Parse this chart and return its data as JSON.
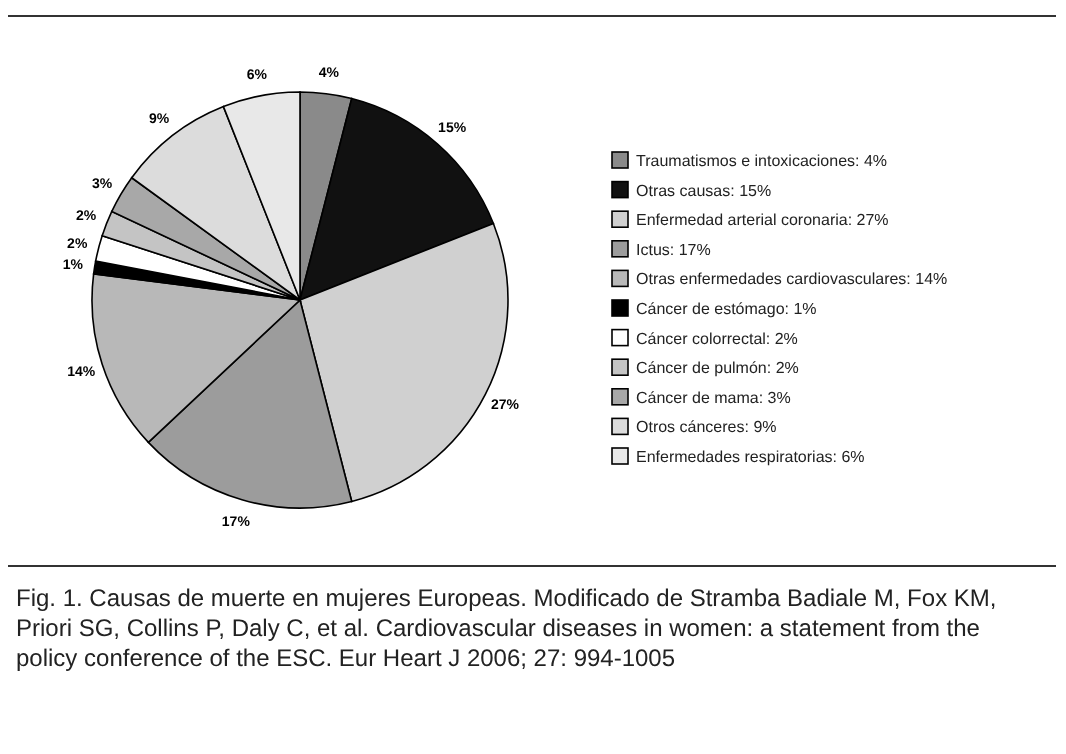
{
  "chart_data": {
    "type": "pie",
    "categories": [
      "Traumatismos e intoxicaciones: 4%",
      "Otras causas: 15%",
      "Enfermedad arterial coronaria: 27%",
      "Ictus: 17%",
      "Otras enfermedades cardiovasculares: 14%",
      "Cáncer de estómago: 1%",
      "Cáncer colorrectal: 2%",
      "Cáncer de pulmón: 2%",
      "Cáncer de mama: 3%",
      "Otros cánceres: 9%",
      "Enfermedades respiratorias: 6%"
    ],
    "values": [
      4,
      15,
      27,
      17,
      14,
      1,
      2,
      2,
      3,
      9,
      6
    ],
    "value_labels": [
      "4%",
      "15%",
      "27%",
      "17%",
      "14%",
      "1%",
      "2%",
      "2%",
      "3%",
      "9%",
      "6%"
    ],
    "colors": [
      "#8a8a8a",
      "#111111",
      "#d0d0d0",
      "#9c9c9c",
      "#b8b8b8",
      "#000000",
      "#ffffff",
      "#c4c4c4",
      "#a8a8a8",
      "#dcdcdc",
      "#e8e8e8"
    ],
    "legend": "right",
    "annotations": [
      "Fig. 1. Causas de muerte en mujeres Europeas. Modificado de Stramba Badiale M, Fox KM, Priori SG, Collins P, Daly C, et al. Cardiovascular diseases in women: a statement from the policy conference of the ESC. Eur Heart J 2006; 27: 994-1005"
    ]
  }
}
